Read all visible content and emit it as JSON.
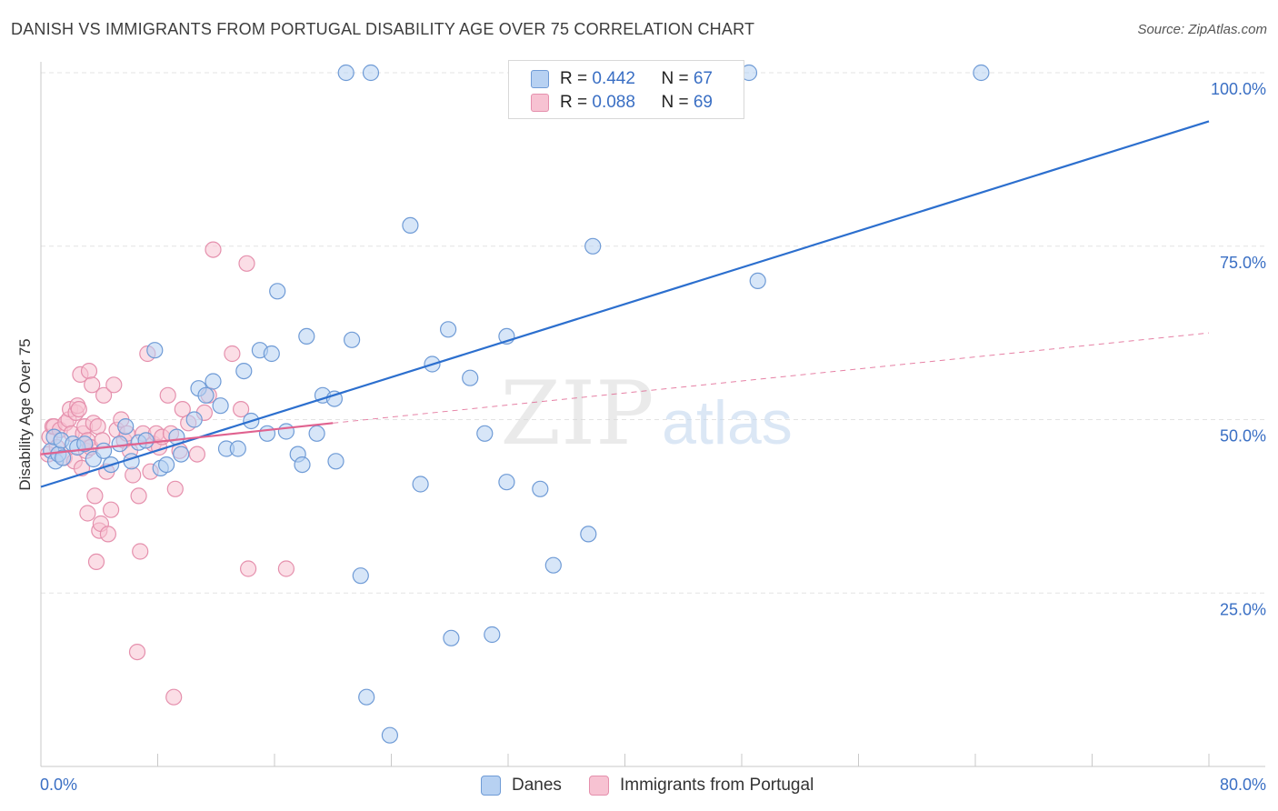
{
  "title": "DANISH VS IMMIGRANTS FROM PORTUGAL DISABILITY AGE OVER 75 CORRELATION CHART",
  "source": "Source: ZipAtlas.com",
  "watermark": {
    "zip": "ZIP",
    "atlas": "atlas"
  },
  "legend": {
    "rows": [
      {
        "r_label": "R = ",
        "r_value": "0.442",
        "n_label": "N = ",
        "n_value": "67"
      },
      {
        "r_label": "R = ",
        "r_value": "0.088",
        "n_label": "N = ",
        "n_value": "69"
      }
    ]
  },
  "bottom_legend": [
    "Danes",
    "Immigrants from Portugal"
  ],
  "colors": {
    "danes_fill": "#b7d1f2",
    "danes_stroke": "#6f9bd6",
    "danes_line": "#2c6fce",
    "portugal_fill": "#f7c2d2",
    "portugal_stroke": "#e590ad",
    "portugal_line": "#e0628f",
    "grid": "#e3e3e3",
    "tick_label": "#3a6fc4"
  },
  "chart_data": {
    "type": "scatter",
    "title": "DANISH VS IMMIGRANTS FROM PORTUGAL DISABILITY AGE OVER 75 CORRELATION CHART",
    "xlabel": "",
    "ylabel": "Disability Age Over 75",
    "xlim": [
      0,
      80
    ],
    "ylim": [
      0,
      100
    ],
    "x_tick_labels": [
      "0.0%",
      "80.0%"
    ],
    "y_ticks": [
      25,
      50,
      75,
      100
    ],
    "y_tick_labels": [
      "25.0%",
      "50.0%",
      "75.0%",
      "100.0%"
    ],
    "grid": true,
    "legend_position": "top-center",
    "series": [
      {
        "name": "Danes",
        "r": 0.442,
        "n": 67,
        "trend": {
          "x": [
            0,
            80
          ],
          "y": [
            40.3,
            93.0
          ],
          "style": "solid"
        },
        "points": [
          [
            0.7,
            45.5
          ],
          [
            0.9,
            47.5
          ],
          [
            1.0,
            44.0
          ],
          [
            1.2,
            45.0
          ],
          [
            1.4,
            47.0
          ],
          [
            1.5,
            44.5
          ],
          [
            2.2,
            46.5
          ],
          [
            2.5,
            46.0
          ],
          [
            3.0,
            46.5
          ],
          [
            3.6,
            44.3
          ],
          [
            4.3,
            45.5
          ],
          [
            4.8,
            43.5
          ],
          [
            5.4,
            46.5
          ],
          [
            5.8,
            49.0
          ],
          [
            6.2,
            44.0
          ],
          [
            6.7,
            46.7
          ],
          [
            7.2,
            47.0
          ],
          [
            7.8,
            60.0
          ],
          [
            8.2,
            43.0
          ],
          [
            8.6,
            43.5
          ],
          [
            9.3,
            47.5
          ],
          [
            9.6,
            45.0
          ],
          [
            10.5,
            50.0
          ],
          [
            10.8,
            54.5
          ],
          [
            11.3,
            53.5
          ],
          [
            11.8,
            55.5
          ],
          [
            12.3,
            52.0
          ],
          [
            12.7,
            45.8
          ],
          [
            13.5,
            45.8
          ],
          [
            13.9,
            57.0
          ],
          [
            14.4,
            49.8
          ],
          [
            15.0,
            60.0
          ],
          [
            15.5,
            48.0
          ],
          [
            15.8,
            59.5
          ],
          [
            16.2,
            68.5
          ],
          [
            16.8,
            48.3
          ],
          [
            17.6,
            45.0
          ],
          [
            17.9,
            43.5
          ],
          [
            18.2,
            62.0
          ],
          [
            18.9,
            48.0
          ],
          [
            19.3,
            53.5
          ],
          [
            20.2,
            44.0
          ],
          [
            20.1,
            53.0
          ],
          [
            20.9,
            100.0
          ],
          [
            21.3,
            61.5
          ],
          [
            21.9,
            27.5
          ],
          [
            22.3,
            10.0
          ],
          [
            22.6,
            100.0
          ],
          [
            23.9,
            4.5
          ],
          [
            26.0,
            40.7
          ],
          [
            25.3,
            78.0
          ],
          [
            26.8,
            58.0
          ],
          [
            27.9,
            63.0
          ],
          [
            28.1,
            18.5
          ],
          [
            29.4,
            56.0
          ],
          [
            30.4,
            48.0
          ],
          [
            30.9,
            19.0
          ],
          [
            31.9,
            62.0
          ],
          [
            31.9,
            41.0
          ],
          [
            34.2,
            40.0
          ],
          [
            35.1,
            29.0
          ],
          [
            37.5,
            33.5
          ],
          [
            37.8,
            75.0
          ],
          [
            40.0,
            100.0
          ],
          [
            48.5,
            100.0
          ],
          [
            49.1,
            70.0
          ],
          [
            64.4,
            100.0
          ]
        ]
      },
      {
        "name": "Immigrants from Portugal",
        "r": 0.088,
        "n": 69,
        "trend": {
          "x": [
            0,
            20
          ],
          "y": [
            45.0,
            49.5
          ],
          "style": "solid",
          "extended": {
            "x": [
              20,
              80
            ],
            "y": [
              49.5,
              62.5
            ],
            "style": "dashed"
          }
        },
        "points": [
          [
            0.5,
            45.0
          ],
          [
            0.6,
            47.5
          ],
          [
            0.8,
            49.0
          ],
          [
            0.9,
            49.0
          ],
          [
            1.1,
            46.0
          ],
          [
            1.3,
            48.5
          ],
          [
            1.6,
            44.5
          ],
          [
            1.7,
            49.5
          ],
          [
            1.9,
            50.0
          ],
          [
            2.0,
            51.5
          ],
          [
            2.1,
            48.0
          ],
          [
            2.3,
            44.0
          ],
          [
            2.4,
            51.0
          ],
          [
            2.5,
            52.0
          ],
          [
            2.6,
            51.5
          ],
          [
            2.7,
            56.5
          ],
          [
            2.8,
            43.0
          ],
          [
            2.9,
            48.0
          ],
          [
            3.0,
            49.0
          ],
          [
            3.1,
            45.5
          ],
          [
            3.2,
            47.0
          ],
          [
            3.2,
            36.5
          ],
          [
            3.3,
            57.0
          ],
          [
            3.4,
            46.0
          ],
          [
            3.5,
            55.0
          ],
          [
            3.6,
            49.5
          ],
          [
            3.7,
            39.0
          ],
          [
            3.8,
            29.5
          ],
          [
            3.9,
            49.0
          ],
          [
            4.0,
            34.0
          ],
          [
            4.1,
            35.0
          ],
          [
            4.2,
            47.0
          ],
          [
            4.3,
            53.5
          ],
          [
            4.5,
            42.5
          ],
          [
            4.6,
            33.5
          ],
          [
            4.8,
            37.0
          ],
          [
            5.0,
            55.0
          ],
          [
            5.2,
            48.5
          ],
          [
            5.5,
            50.0
          ],
          [
            5.7,
            47.0
          ],
          [
            5.9,
            48.0
          ],
          [
            6.1,
            45.5
          ],
          [
            6.3,
            42.0
          ],
          [
            6.6,
            16.5
          ],
          [
            6.7,
            39.0
          ],
          [
            6.8,
            31.0
          ],
          [
            7.0,
            48.0
          ],
          [
            7.3,
            59.5
          ],
          [
            7.5,
            42.5
          ],
          [
            7.7,
            46.5
          ],
          [
            7.9,
            48.0
          ],
          [
            8.1,
            46.0
          ],
          [
            8.3,
            47.5
          ],
          [
            8.7,
            53.5
          ],
          [
            8.9,
            48.0
          ],
          [
            9.1,
            10.0
          ],
          [
            9.2,
            40.0
          ],
          [
            9.5,
            45.5
          ],
          [
            9.7,
            51.5
          ],
          [
            10.1,
            49.5
          ],
          [
            10.7,
            45.0
          ],
          [
            11.2,
            51.0
          ],
          [
            11.5,
            53.5
          ],
          [
            11.8,
            74.5
          ],
          [
            13.1,
            59.5
          ],
          [
            13.7,
            51.5
          ],
          [
            14.1,
            72.5
          ],
          [
            14.2,
            28.5
          ],
          [
            16.8,
            28.5
          ]
        ]
      }
    ]
  }
}
